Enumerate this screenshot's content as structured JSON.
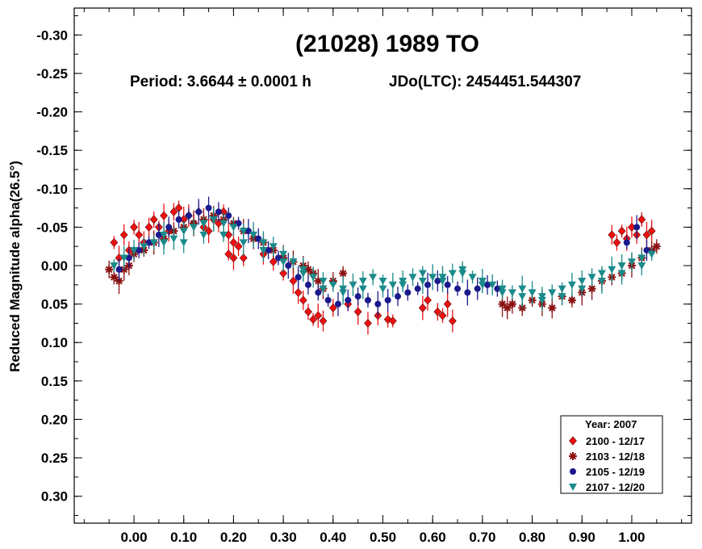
{
  "chart_data": {
    "type": "scatter",
    "title": "(21028) 1989 TO",
    "period_text": "Period: 3.6644 ± 0.0001 h",
    "epoch_text": "JDo(LTC): 2454451.544307",
    "xlabel": "",
    "ylabel": "Reduced Magnitude alpha(26.5°)",
    "xlim": [
      -0.12,
      1.12
    ],
    "ylim": [
      -0.335,
      0.335
    ],
    "y_inverted": true,
    "x_ticks": [
      "0.00",
      "0.10",
      "0.20",
      "0.30",
      "0.40",
      "0.50",
      "0.60",
      "0.70",
      "0.80",
      "0.90",
      "1.00"
    ],
    "x_tick_values": [
      0.0,
      0.1,
      0.2,
      0.3,
      0.4,
      0.5,
      0.6,
      0.7,
      0.8,
      0.9,
      1.0
    ],
    "y_ticks": [
      "-0.30",
      "-0.25",
      "-0.20",
      "-0.15",
      "-0.10",
      "-0.05",
      "0.00",
      "0.05",
      "0.10",
      "0.15",
      "0.20",
      "0.25",
      "0.30"
    ],
    "y_tick_values": [
      -0.3,
      -0.25,
      -0.2,
      -0.15,
      -0.1,
      -0.05,
      0.0,
      0.05,
      0.1,
      0.15,
      0.2,
      0.25,
      0.3
    ],
    "grid": false,
    "legend_title": "Year: 2007",
    "legend_position": "bottom-right",
    "series": [
      {
        "name": "2100 - 12/17",
        "color": "#ee1111",
        "marker": "diamond",
        "points": [
          [
            -0.04,
            -0.03
          ],
          [
            -0.03,
            -0.01
          ],
          [
            -0.02,
            -0.04
          ],
          [
            -0.01,
            -0.02
          ],
          [
            0.0,
            -0.05
          ],
          [
            0.01,
            -0.04
          ],
          [
            0.02,
            -0.03
          ],
          [
            0.03,
            -0.05
          ],
          [
            0.04,
            -0.06
          ],
          [
            0.05,
            -0.05
          ],
          [
            0.06,
            -0.065
          ],
          [
            0.07,
            -0.045
          ],
          [
            0.08,
            -0.07
          ],
          [
            0.09,
            -0.075
          ],
          [
            0.1,
            -0.06
          ],
          [
            0.11,
            -0.065
          ],
          [
            0.12,
            -0.055
          ],
          [
            0.13,
            -0.07
          ],
          [
            0.14,
            -0.05
          ],
          [
            0.15,
            -0.045
          ],
          [
            0.16,
            -0.06
          ],
          [
            0.17,
            -0.055
          ],
          [
            0.18,
            -0.07
          ],
          [
            0.19,
            -0.04
          ],
          [
            0.2,
            -0.03
          ],
          [
            0.21,
            -0.025
          ],
          [
            0.22,
            -0.01
          ],
          [
            0.19,
            -0.015
          ],
          [
            0.2,
            -0.01
          ],
          [
            0.26,
            -0.015
          ],
          [
            0.28,
            -0.005
          ],
          [
            0.3,
            0.01
          ],
          [
            0.32,
            0.02
          ],
          [
            0.33,
            0.035
          ],
          [
            0.34,
            0.045
          ],
          [
            0.35,
            0.06
          ],
          [
            0.36,
            0.07
          ],
          [
            0.37,
            0.065
          ],
          [
            0.38,
            0.072
          ],
          [
            0.4,
            0.055
          ],
          [
            0.43,
            0.05
          ],
          [
            0.45,
            0.06
          ],
          [
            0.47,
            0.075
          ],
          [
            0.49,
            0.065
          ],
          [
            0.51,
            0.07
          ],
          [
            0.52,
            0.072
          ],
          [
            0.58,
            0.055
          ],
          [
            0.59,
            0.045
          ],
          [
            0.61,
            0.06
          ],
          [
            0.62,
            0.065
          ],
          [
            0.63,
            0.05
          ],
          [
            0.64,
            0.072
          ],
          [
            0.96,
            -0.04
          ],
          [
            0.97,
            -0.03
          ],
          [
            0.98,
            -0.045
          ],
          [
            0.99,
            -0.035
          ],
          [
            1.0,
            -0.05
          ],
          [
            1.01,
            -0.04
          ],
          [
            1.02,
            -0.06
          ],
          [
            1.03,
            -0.04
          ],
          [
            1.04,
            -0.045
          ]
        ]
      },
      {
        "name": "2103 - 12/18",
        "color": "#8b1010",
        "marker": "star",
        "points": [
          [
            -0.05,
            0.005
          ],
          [
            -0.04,
            0.015
          ],
          [
            -0.03,
            0.02
          ],
          [
            -0.02,
            0.005
          ],
          [
            -0.01,
            0.0
          ],
          [
            0.0,
            -0.015
          ],
          [
            0.02,
            -0.02
          ],
          [
            0.04,
            -0.03
          ],
          [
            0.06,
            -0.035
          ],
          [
            0.08,
            -0.045
          ],
          [
            0.1,
            -0.05
          ],
          [
            0.12,
            -0.055
          ],
          [
            0.14,
            -0.06
          ],
          [
            0.16,
            -0.065
          ],
          [
            0.18,
            -0.06
          ],
          [
            0.2,
            -0.055
          ],
          [
            0.22,
            -0.045
          ],
          [
            0.24,
            -0.035
          ],
          [
            0.26,
            -0.03
          ],
          [
            0.28,
            -0.02
          ],
          [
            0.3,
            -0.01
          ],
          [
            0.32,
            -0.005
          ],
          [
            0.34,
            0.0
          ],
          [
            0.35,
            0.005
          ],
          [
            0.36,
            0.01
          ],
          [
            0.37,
            0.02
          ],
          [
            0.38,
            0.03
          ],
          [
            0.4,
            0.02
          ],
          [
            0.42,
            0.01
          ],
          [
            0.74,
            0.05
          ],
          [
            0.75,
            0.055
          ],
          [
            0.76,
            0.05
          ],
          [
            0.78,
            0.055
          ],
          [
            0.8,
            0.045
          ],
          [
            0.82,
            0.05
          ],
          [
            0.84,
            0.055
          ],
          [
            0.86,
            0.04
          ],
          [
            0.88,
            0.045
          ],
          [
            0.9,
            0.035
          ],
          [
            0.92,
            0.03
          ],
          [
            0.94,
            0.02
          ],
          [
            0.96,
            0.015
          ],
          [
            0.98,
            0.01
          ],
          [
            1.0,
            0.0
          ],
          [
            1.02,
            -0.01
          ],
          [
            1.04,
            -0.02
          ],
          [
            1.05,
            -0.025
          ]
        ]
      },
      {
        "name": "2105 - 12/19",
        "color": "#1a1a8c",
        "marker": "circle",
        "points": [
          [
            -0.03,
            0.005
          ],
          [
            -0.01,
            -0.01
          ],
          [
            0.01,
            -0.02
          ],
          [
            0.03,
            -0.03
          ],
          [
            0.05,
            -0.04
          ],
          [
            0.07,
            -0.05
          ],
          [
            0.09,
            -0.06
          ],
          [
            0.11,
            -0.065
          ],
          [
            0.13,
            -0.07
          ],
          [
            0.15,
            -0.075
          ],
          [
            0.17,
            -0.07
          ],
          [
            0.19,
            -0.065
          ],
          [
            0.21,
            -0.055
          ],
          [
            0.23,
            -0.045
          ],
          [
            0.25,
            -0.035
          ],
          [
            0.27,
            -0.02
          ],
          [
            0.29,
            -0.01
          ],
          [
            0.31,
            0.0
          ],
          [
            0.33,
            0.015
          ],
          [
            0.35,
            0.025
          ],
          [
            0.37,
            0.035
          ],
          [
            0.39,
            0.045
          ],
          [
            0.41,
            0.05
          ],
          [
            0.43,
            0.045
          ],
          [
            0.45,
            0.04
          ],
          [
            0.47,
            0.045
          ],
          [
            0.49,
            0.05
          ],
          [
            0.51,
            0.045
          ],
          [
            0.53,
            0.04
          ],
          [
            0.55,
            0.035
          ],
          [
            0.57,
            0.03
          ],
          [
            0.59,
            0.025
          ],
          [
            0.61,
            0.02
          ],
          [
            0.63,
            0.025
          ],
          [
            0.65,
            0.03
          ],
          [
            0.67,
            0.035
          ],
          [
            0.69,
            0.03
          ],
          [
            0.71,
            0.025
          ],
          [
            0.73,
            0.03
          ],
          [
            0.99,
            -0.03
          ],
          [
            1.01,
            -0.05
          ],
          [
            1.03,
            -0.02
          ]
        ]
      },
      {
        "name": "2107 - 12/20",
        "color": "#1a8a8a",
        "marker": "triangle-down",
        "points": [
          [
            -0.04,
            0.0
          ],
          [
            -0.02,
            -0.01
          ],
          [
            0.0,
            -0.02
          ],
          [
            0.02,
            -0.025
          ],
          [
            0.04,
            -0.03
          ],
          [
            0.06,
            -0.04
          ],
          [
            0.08,
            -0.035
          ],
          [
            0.1,
            -0.045
          ],
          [
            0.12,
            -0.05
          ],
          [
            0.14,
            -0.055
          ],
          [
            0.16,
            -0.06
          ],
          [
            0.18,
            -0.055
          ],
          [
            0.2,
            -0.05
          ],
          [
            0.22,
            -0.045
          ],
          [
            0.24,
            -0.04
          ],
          [
            0.26,
            -0.03
          ],
          [
            0.28,
            -0.025
          ],
          [
            0.3,
            -0.015
          ],
          [
            0.32,
            -0.005
          ],
          [
            0.34,
            0.005
          ],
          [
            0.36,
            0.015
          ],
          [
            0.38,
            0.02
          ],
          [
            0.4,
            0.025
          ],
          [
            0.42,
            0.03
          ],
          [
            0.44,
            0.025
          ],
          [
            0.46,
            0.02
          ],
          [
            0.48,
            0.015
          ],
          [
            0.5,
            0.02
          ],
          [
            0.52,
            0.025
          ],
          [
            0.54,
            0.02
          ],
          [
            0.56,
            0.015
          ],
          [
            0.58,
            0.01
          ],
          [
            0.6,
            0.015
          ],
          [
            0.62,
            0.02
          ],
          [
            0.64,
            0.01
          ],
          [
            0.66,
            0.005
          ],
          [
            0.68,
            0.015
          ],
          [
            0.7,
            0.02
          ],
          [
            0.72,
            0.025
          ],
          [
            0.74,
            0.03
          ],
          [
            0.76,
            0.035
          ],
          [
            0.78,
            0.03
          ],
          [
            0.8,
            0.035
          ],
          [
            0.82,
            0.04
          ],
          [
            0.84,
            0.035
          ],
          [
            0.86,
            0.03
          ],
          [
            0.88,
            0.025
          ],
          [
            0.9,
            0.02
          ],
          [
            0.92,
            0.015
          ],
          [
            0.94,
            0.01
          ],
          [
            0.96,
            0.005
          ],
          [
            0.98,
            0.0
          ],
          [
            1.0,
            -0.005
          ],
          [
            1.02,
            -0.01
          ],
          [
            1.04,
            -0.015
          ],
          [
            0.06,
            -0.03
          ],
          [
            0.1,
            -0.03
          ],
          [
            0.14,
            -0.04
          ],
          [
            0.18,
            -0.04
          ],
          [
            0.22,
            -0.03
          ],
          [
            0.26,
            -0.02
          ],
          [
            0.3,
            -0.005
          ],
          [
            0.34,
            0.01
          ],
          [
            0.38,
            0.03
          ],
          [
            0.42,
            0.035
          ],
          [
            0.46,
            0.03
          ],
          [
            0.5,
            0.03
          ],
          [
            0.54,
            0.025
          ],
          [
            0.58,
            0.02
          ],
          [
            0.62,
            0.015
          ],
          [
            0.66,
            0.01
          ],
          [
            0.7,
            0.025
          ],
          [
            0.74,
            0.035
          ],
          [
            0.78,
            0.04
          ],
          [
            0.82,
            0.045
          ],
          [
            0.86,
            0.04
          ],
          [
            0.9,
            0.03
          ],
          [
            0.94,
            0.02
          ],
          [
            0.98,
            0.01
          ],
          [
            1.02,
            0.0
          ]
        ]
      }
    ]
  }
}
